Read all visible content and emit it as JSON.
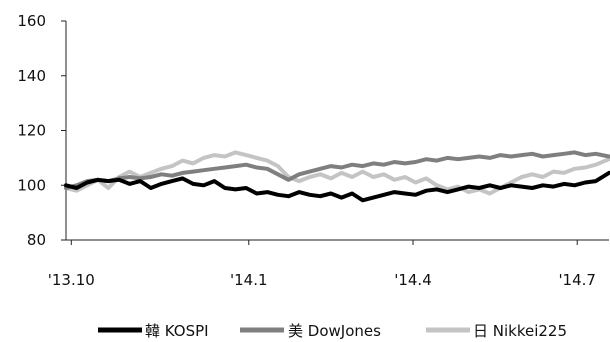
{
  "chart_data": {
    "type": "line",
    "title": "",
    "xlabel": "",
    "ylabel": "",
    "ylim": [
      80,
      160
    ],
    "yticks": [
      80,
      100,
      120,
      140,
      160
    ],
    "x_domain": [
      0,
      10.25
    ],
    "xticks": [
      {
        "x": 0.1,
        "label": "'13.10"
      },
      {
        "x": 3.45,
        "label": "'14.1"
      },
      {
        "x": 6.55,
        "label": "'14.4"
      },
      {
        "x": 9.65,
        "label": "'14.7"
      }
    ],
    "grid": false,
    "legend_position": "bottom",
    "series": [
      {
        "name": "韓 KOSPI",
        "color": "#000000",
        "points": [
          [
            0,
            100
          ],
          [
            0.2,
            99
          ],
          [
            0.4,
            101
          ],
          [
            0.6,
            102
          ],
          [
            0.8,
            101.5
          ],
          [
            1.0,
            102
          ],
          [
            1.2,
            100.5
          ],
          [
            1.4,
            101.5
          ],
          [
            1.6,
            99
          ],
          [
            1.8,
            100.5
          ],
          [
            2.0,
            101.5
          ],
          [
            2.2,
            102.5
          ],
          [
            2.4,
            100.5
          ],
          [
            2.6,
            100
          ],
          [
            2.8,
            101.5
          ],
          [
            3.0,
            99
          ],
          [
            3.2,
            98.5
          ],
          [
            3.4,
            99
          ],
          [
            3.6,
            97
          ],
          [
            3.8,
            97.5
          ],
          [
            4.0,
            96.5
          ],
          [
            4.2,
            96
          ],
          [
            4.4,
            97.5
          ],
          [
            4.6,
            96.5
          ],
          [
            4.8,
            96
          ],
          [
            5.0,
            97
          ],
          [
            5.2,
            95.5
          ],
          [
            5.4,
            97
          ],
          [
            5.6,
            94.5
          ],
          [
            5.8,
            95.5
          ],
          [
            6.0,
            96.5
          ],
          [
            6.2,
            97.5
          ],
          [
            6.4,
            97
          ],
          [
            6.6,
            96.5
          ],
          [
            6.8,
            98
          ],
          [
            7.0,
            98.5
          ],
          [
            7.2,
            97.5
          ],
          [
            7.4,
            98.5
          ],
          [
            7.6,
            99.5
          ],
          [
            7.8,
            99
          ],
          [
            8.0,
            100
          ],
          [
            8.2,
            99
          ],
          [
            8.4,
            100
          ],
          [
            8.6,
            99.5
          ],
          [
            8.8,
            99
          ],
          [
            9.0,
            100
          ],
          [
            9.2,
            99.5
          ],
          [
            9.4,
            100.5
          ],
          [
            9.6,
            100
          ],
          [
            9.8,
            101
          ],
          [
            10.0,
            101.5
          ],
          [
            10.25,
            104.5
          ]
        ]
      },
      {
        "name": "美 DowJones",
        "color": "#7f7f7f",
        "points": [
          [
            0,
            99
          ],
          [
            0.2,
            100
          ],
          [
            0.4,
            101.5
          ],
          [
            0.6,
            102
          ],
          [
            0.8,
            101.5
          ],
          [
            1.0,
            102.5
          ],
          [
            1.2,
            103
          ],
          [
            1.4,
            102.5
          ],
          [
            1.6,
            103
          ],
          [
            1.8,
            104
          ],
          [
            2.0,
            103.5
          ],
          [
            2.2,
            104.5
          ],
          [
            2.4,
            105
          ],
          [
            2.6,
            105.5
          ],
          [
            2.8,
            106
          ],
          [
            3.0,
            106.5
          ],
          [
            3.2,
            107
          ],
          [
            3.4,
            107.5
          ],
          [
            3.6,
            106.5
          ],
          [
            3.8,
            106
          ],
          [
            4.0,
            104
          ],
          [
            4.2,
            102
          ],
          [
            4.4,
            104
          ],
          [
            4.6,
            105
          ],
          [
            4.8,
            106
          ],
          [
            5.0,
            107
          ],
          [
            5.2,
            106.5
          ],
          [
            5.4,
            107.5
          ],
          [
            5.6,
            107
          ],
          [
            5.8,
            108
          ],
          [
            6.0,
            107.5
          ],
          [
            6.2,
            108.5
          ],
          [
            6.4,
            108
          ],
          [
            6.6,
            108.5
          ],
          [
            6.8,
            109.5
          ],
          [
            7.0,
            109
          ],
          [
            7.2,
            110
          ],
          [
            7.4,
            109.5
          ],
          [
            7.6,
            110
          ],
          [
            7.8,
            110.5
          ],
          [
            8.0,
            110
          ],
          [
            8.2,
            111
          ],
          [
            8.4,
            110.5
          ],
          [
            8.6,
            111
          ],
          [
            8.8,
            111.5
          ],
          [
            9.0,
            110.5
          ],
          [
            9.2,
            111
          ],
          [
            9.4,
            111.5
          ],
          [
            9.6,
            112
          ],
          [
            9.8,
            111
          ],
          [
            10.0,
            111.5
          ],
          [
            10.25,
            110.5
          ]
        ]
      },
      {
        "name": "日 Nikkei225",
        "color": "#c4c4c4",
        "points": [
          [
            0,
            99
          ],
          [
            0.2,
            98
          ],
          [
            0.4,
            100
          ],
          [
            0.6,
            102
          ],
          [
            0.8,
            99
          ],
          [
            1.0,
            103
          ],
          [
            1.2,
            105
          ],
          [
            1.4,
            103
          ],
          [
            1.6,
            104.5
          ],
          [
            1.8,
            106
          ],
          [
            2.0,
            107
          ],
          [
            2.2,
            109
          ],
          [
            2.4,
            108
          ],
          [
            2.6,
            110
          ],
          [
            2.8,
            111
          ],
          [
            3.0,
            110.5
          ],
          [
            3.2,
            112
          ],
          [
            3.4,
            111
          ],
          [
            3.6,
            110
          ],
          [
            3.8,
            109
          ],
          [
            4.0,
            107
          ],
          [
            4.2,
            103
          ],
          [
            4.4,
            101.5
          ],
          [
            4.6,
            103
          ],
          [
            4.8,
            104
          ],
          [
            5.0,
            102.5
          ],
          [
            5.2,
            104.5
          ],
          [
            5.4,
            103
          ],
          [
            5.6,
            105
          ],
          [
            5.8,
            103
          ],
          [
            6.0,
            104
          ],
          [
            6.2,
            102
          ],
          [
            6.4,
            103
          ],
          [
            6.6,
            101
          ],
          [
            6.8,
            102.5
          ],
          [
            7.0,
            100
          ],
          [
            7.2,
            98.5
          ],
          [
            7.4,
            99.5
          ],
          [
            7.6,
            97.5
          ],
          [
            7.8,
            98.5
          ],
          [
            8.0,
            97
          ],
          [
            8.2,
            99
          ],
          [
            8.4,
            101
          ],
          [
            8.6,
            103
          ],
          [
            8.8,
            104
          ],
          [
            9.0,
            103
          ],
          [
            9.2,
            105
          ],
          [
            9.4,
            104.5
          ],
          [
            9.6,
            106
          ],
          [
            9.8,
            106.5
          ],
          [
            10.0,
            107.5
          ],
          [
            10.25,
            109.5
          ]
        ]
      }
    ]
  }
}
